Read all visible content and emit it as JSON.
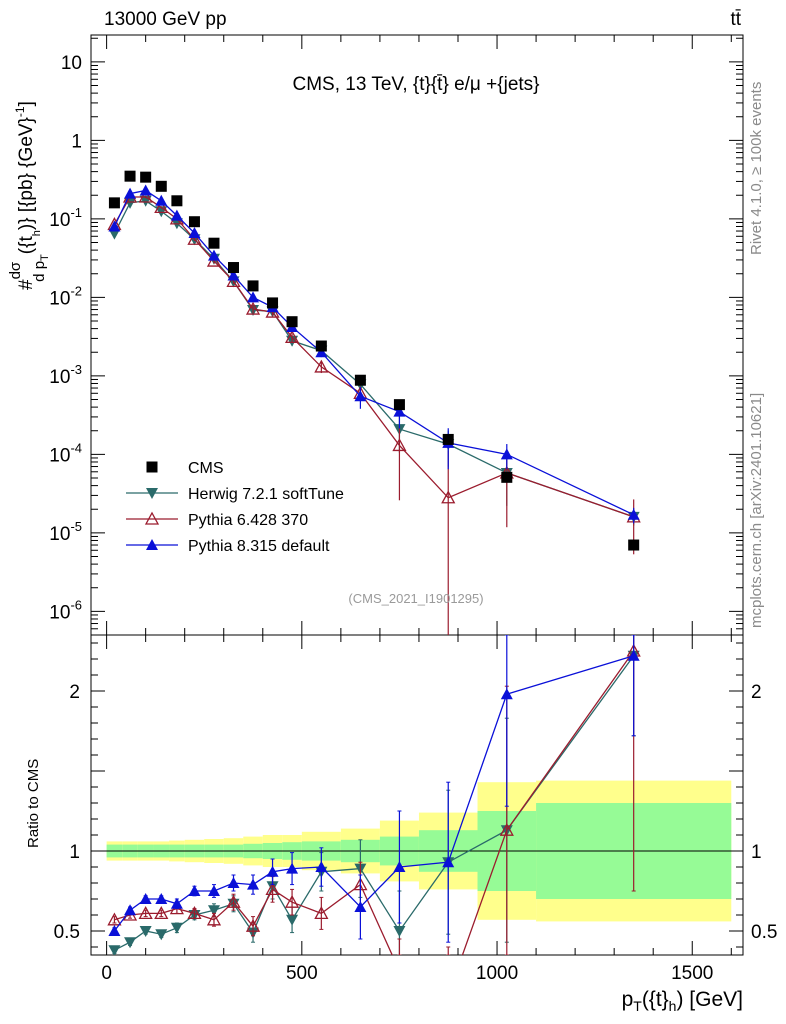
{
  "header": {
    "left": "13000 GeV pp",
    "right": "tt̄"
  },
  "side_labels": {
    "rivet": "Rivet 4.1.0, ≥ 100k events",
    "mcplots": "mcplots.cern.ch [arXiv:2401.10621]"
  },
  "chart_data": {
    "type": "scatter",
    "title": "CMS, 13 TeV, {t}{t̄} e/μ +{jets}",
    "analysis_id": "(CMS_2021_I1901295)",
    "xlabel": "p_T({t}_h) [GeV]",
    "ylabel": "#dsigma / d p_T({t}_h) )} [{pb} {GeV}^-1]",
    "ratio_ylabel": "Ratio to CMS",
    "xlim": [
      -40,
      1630
    ],
    "ylim_log": [
      5e-07,
      22
    ],
    "ratio_ylim": [
      0.35,
      2.35
    ],
    "x_ticks": [
      "0",
      "500",
      "1000",
      "1500"
    ],
    "y_ticks": [
      "10^-6",
      "10^-5",
      "10^-4",
      "10^-3",
      "10^-2",
      "10^-1",
      "1",
      "10"
    ],
    "ratio_ticks": [
      "0.5",
      "1",
      "2"
    ],
    "legend": [
      {
        "name": "CMS",
        "marker": "square",
        "color": "#000000"
      },
      {
        "name": "Herwig 7.2.1 softTune",
        "marker": "triangle-down",
        "color": "#2a6a6a"
      },
      {
        "name": "Pythia 6.428 370",
        "marker": "triangle-open",
        "color": "#9b1c2e"
      },
      {
        "name": "Pythia 8.315 default",
        "marker": "triangle-up",
        "color": "#0a10d8"
      }
    ],
    "x": [
      20,
      60,
      100,
      140,
      180,
      225,
      275,
      325,
      375,
      425,
      475,
      550,
      650,
      750,
      875,
      1025,
      1350
    ],
    "x_edges": [
      0,
      40,
      80,
      120,
      160,
      200,
      250,
      300,
      350,
      400,
      450,
      500,
      600,
      700,
      800,
      950,
      1100,
      1600
    ],
    "cms_values": [
      0.16,
      0.35,
      0.34,
      0.26,
      0.17,
      0.092,
      0.049,
      0.024,
      0.014,
      0.0085,
      0.0049,
      0.0024,
      0.00088,
      0.00043,
      0.000155,
      5.1e-05,
      7e-06
    ],
    "cms_band_inner": [
      0.04,
      0.04,
      0.04,
      0.04,
      0.04,
      0.04,
      0.04,
      0.04,
      0.045,
      0.05,
      0.055,
      0.06,
      0.07,
      0.09,
      0.13,
      0.25,
      0.3
    ],
    "cms_band_outer": [
      0.06,
      0.06,
      0.06,
      0.06,
      0.065,
      0.07,
      0.075,
      0.08,
      0.09,
      0.1,
      0.1,
      0.12,
      0.14,
      0.19,
      0.24,
      0.43,
      0.44
    ],
    "series": [
      {
        "name": "Herwig 7.2.1 softTune",
        "values": [
          0.065,
          0.16,
          0.17,
          0.125,
          0.088,
          0.055,
          0.031,
          0.016,
          0.0069,
          0.0066,
          0.0028,
          0.0021,
          0.00078,
          0.00021,
          0.000135,
          5.8e-05,
          1.6e-05
        ],
        "ratio": [
          0.38,
          0.43,
          0.5,
          0.48,
          0.52,
          0.6,
          0.63,
          0.67,
          0.49,
          0.78,
          0.57,
          0.87,
          0.89,
          0.5,
          0.93,
          1.13,
          2.22
        ],
        "ratio_err": [
          0.02,
          0.02,
          0.02,
          0.02,
          0.03,
          0.03,
          0.04,
          0.05,
          0.06,
          0.08,
          0.08,
          0.12,
          0.18,
          0.25,
          0.45,
          0.7,
          0.5
        ]
      },
      {
        "name": "Pythia 6.428 370",
        "values": [
          0.085,
          0.19,
          0.19,
          0.14,
          0.1,
          0.055,
          0.029,
          0.016,
          0.0071,
          0.0065,
          0.0031,
          0.0013,
          0.0006,
          0.00013,
          2.8e-05,
          5.8e-05,
          1.6e-05
        ],
        "ratio": [
          0.57,
          0.6,
          0.61,
          0.61,
          0.64,
          0.61,
          0.57,
          0.68,
          0.53,
          0.76,
          0.68,
          0.61,
          0.79,
          0.25,
          0.1,
          1.13,
          2.25
        ],
        "ratio_err": [
          0.02,
          0.02,
          0.02,
          0.02,
          0.03,
          0.03,
          0.04,
          0.05,
          0.06,
          0.08,
          0.08,
          0.1,
          0.14,
          0.2,
          0.3,
          0.9,
          1.5
        ]
      },
      {
        "name": "Pythia 8.315 default",
        "values": [
          0.08,
          0.21,
          0.23,
          0.17,
          0.11,
          0.066,
          0.034,
          0.019,
          0.01,
          0.0075,
          0.0042,
          0.002,
          0.00055,
          0.00035,
          0.00014,
          0.0001,
          1.7e-05
        ],
        "ratio": [
          0.5,
          0.63,
          0.7,
          0.7,
          0.67,
          0.75,
          0.75,
          0.8,
          0.79,
          0.87,
          0.89,
          0.9,
          0.65,
          0.9,
          0.93,
          1.98,
          2.22
        ],
        "ratio_err": [
          0.02,
          0.02,
          0.02,
          0.02,
          0.03,
          0.03,
          0.04,
          0.05,
          0.06,
          0.08,
          0.1,
          0.12,
          0.2,
          0.35,
          0.5,
          0.7,
          0.5
        ]
      }
    ]
  }
}
